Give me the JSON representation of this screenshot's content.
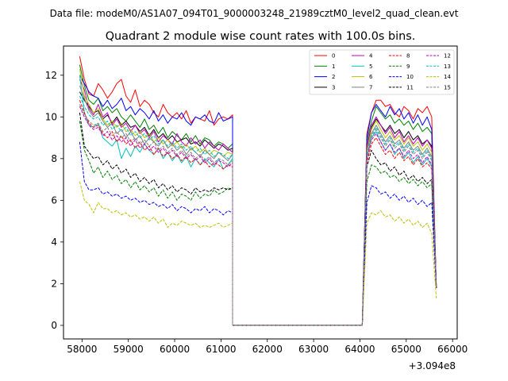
{
  "suptitle": "Data file: modeM0/AS1A07_094T01_9000003248_21989cztM0_level2_quad_clean.evt",
  "chart_data": {
    "type": "line",
    "title": "Quadrant 2 module wise count rates with 100.0s bins.",
    "xlabel": "",
    "ylabel": "",
    "x_offset_label": "+3.094e8",
    "xlim": [
      57600,
      66100
    ],
    "ylim": [
      -0.65,
      13.4
    ],
    "xticks": [
      58000,
      59000,
      60000,
      61000,
      62000,
      63000,
      64000,
      65000,
      66000
    ],
    "yticks": [
      0,
      2,
      4,
      6,
      8,
      10,
      12
    ],
    "grid": false,
    "legend": {
      "position": "top-right",
      "columns": 4
    },
    "x": {
      "segment1": {
        "start": 57950,
        "step": 100,
        "count": 34
      },
      "gap_from": 61250,
      "gap_to": 64050,
      "segment2": {
        "start": 64150,
        "step": 100,
        "count": 15
      }
    },
    "series": [
      {
        "name": "0",
        "color": "#ff0000",
        "style": "solid",
        "values": [
          12.9,
          11.8,
          11.1,
          11.0,
          11.6,
          11.3,
          10.9,
          11.2,
          11.6,
          11.8,
          11.0,
          10.7,
          11.3,
          10.5,
          10.8,
          10.6,
          10.2,
          10.0,
          10.6,
          10.2,
          10.0,
          10.2,
          9.9,
          10.3,
          9.7,
          10.0,
          9.9,
          9.8,
          10.3,
          9.6,
          9.9,
          10.0,
          9.9,
          10.1
        ],
        "values2": [
          9.2,
          10.2,
          10.8,
          10.8,
          10.5,
          10.6,
          10.2,
          10.0,
          10.5,
          10.3,
          9.9,
          10.4,
          10.2,
          10.5,
          10.0
        ]
      },
      {
        "name": "1",
        "color": "#008000",
        "style": "solid",
        "values": [
          12.5,
          11.5,
          10.8,
          10.6,
          10.9,
          10.3,
          10.5,
          10.2,
          10.4,
          10.0,
          9.8,
          10.1,
          9.8,
          9.5,
          9.9,
          9.4,
          9.6,
          9.2,
          9.5,
          9.0,
          9.3,
          9.1,
          8.9,
          9.2,
          8.8,
          9.1,
          8.7,
          9.0,
          8.9,
          8.6,
          8.8,
          8.7,
          8.5,
          8.7
        ],
        "values2": [
          8.8,
          9.8,
          10.5,
          10.2,
          9.9,
          10.1,
          9.7,
          9.9,
          9.6,
          9.8,
          9.4,
          9.7,
          9.3,
          9.5,
          9.2
        ]
      },
      {
        "name": "2",
        "color": "#0000ff",
        "style": "solid",
        "values": [
          12.0,
          11.6,
          11.2,
          11.0,
          10.9,
          10.5,
          10.8,
          10.4,
          10.6,
          10.9,
          10.3,
          10.5,
          10.1,
          10.4,
          10.2,
          9.9,
          10.3,
          9.8,
          10.1,
          9.7,
          10.0,
          9.9,
          10.2,
          9.8,
          9.6,
          10.0,
          9.9,
          10.1,
          9.8,
          9.7,
          10.2,
          9.8,
          9.9,
          10.0
        ],
        "values2": [
          9.0,
          10.2,
          10.6,
          10.3,
          10.0,
          10.5,
          10.1,
          10.4,
          9.9,
          10.2,
          9.7,
          10.1,
          9.6,
          10.0,
          9.4
        ]
      },
      {
        "name": "3",
        "color": "#000000",
        "style": "solid",
        "values": [
          11.2,
          10.8,
          10.5,
          10.2,
          10.3,
          9.9,
          10.1,
          9.7,
          10.0,
          9.6,
          9.8,
          9.5,
          9.6,
          9.3,
          9.5,
          9.1,
          9.4,
          9.0,
          9.2,
          8.9,
          9.1,
          8.8,
          8.9,
          9.0,
          8.7,
          8.8,
          8.6,
          8.9,
          8.7,
          8.5,
          8.7,
          8.6,
          8.4,
          8.5
        ],
        "values2": [
          8.5,
          9.5,
          9.9,
          9.6,
          9.3,
          9.6,
          9.2,
          9.4,
          9.0,
          9.3,
          8.9,
          9.1,
          8.7,
          8.9,
          8.6
        ]
      },
      {
        "name": "4",
        "color": "#bf00bf",
        "style": "solid",
        "values": [
          11.8,
          11.3,
          10.4,
          10.1,
          10.6,
          10.0,
          10.2,
          9.6,
          9.9,
          9.5,
          9.7,
          9.3,
          9.6,
          9.2,
          9.4,
          9.0,
          9.3,
          8.8,
          9.1,
          8.9,
          8.7,
          9.2,
          8.8,
          8.6,
          9.0,
          8.7,
          8.9,
          8.5,
          8.8,
          8.6,
          8.4,
          8.7,
          8.5,
          8.3
        ],
        "values2": [
          8.6,
          9.6,
          10.0,
          9.6,
          9.2,
          9.5,
          9.0,
          9.3,
          8.8,
          9.1,
          8.7,
          9.0,
          8.6,
          8.9,
          8.5
        ]
      },
      {
        "name": "5",
        "color": "#00bfbf",
        "style": "solid",
        "values": [
          12.0,
          10.2,
          9.6,
          9.5,
          9.7,
          9.0,
          8.8,
          8.6,
          8.9,
          8.0,
          8.5,
          8.1,
          8.6,
          8.3,
          8.7,
          8.4,
          8.2,
          8.5,
          8.0,
          8.3,
          7.9,
          8.2,
          7.8,
          8.1,
          7.6,
          8.0,
          7.7,
          8.0,
          7.8,
          7.6,
          8.0,
          7.5,
          7.7,
          8.0
        ],
        "values2": [
          8.0,
          9.0,
          9.3,
          8.8,
          8.4,
          8.7,
          8.2,
          8.5,
          8.0,
          8.3,
          7.8,
          8.1,
          7.7,
          8.0,
          7.6
        ]
      },
      {
        "name": "6",
        "color": "#bfbf00",
        "style": "solid",
        "values": [
          12.3,
          11.0,
          10.6,
          10.2,
          10.4,
          9.9,
          9.6,
          9.8,
          9.5,
          9.7,
          9.3,
          9.4,
          9.1,
          9.3,
          9.0,
          9.2,
          8.8,
          9.0,
          8.7,
          8.9,
          8.6,
          8.8,
          8.5,
          8.7,
          8.4,
          8.6,
          8.3,
          8.5,
          8.2,
          8.4,
          8.3,
          8.1,
          8.3,
          8.2
        ],
        "values2": [
          8.4,
          9.4,
          9.8,
          9.4,
          9.0,
          9.3,
          8.9,
          9.1,
          8.7,
          9.0,
          8.6,
          8.8,
          8.4,
          8.7,
          8.3
        ]
      },
      {
        "name": "7",
        "color": "#808080",
        "style": "solid",
        "values": [
          11.5,
          10.9,
          10.3,
          10.0,
          10.2,
          9.8,
          9.5,
          9.7,
          9.2,
          9.4,
          9.0,
          9.3,
          8.9,
          9.1,
          8.7,
          9.0,
          8.8,
          8.6,
          8.9,
          8.5,
          8.7,
          8.4,
          8.6,
          8.2,
          8.5,
          8.3,
          8.1,
          8.4,
          8.2,
          8.0,
          8.3,
          8.1,
          7.9,
          8.2
        ],
        "values2": [
          8.3,
          9.2,
          9.6,
          9.2,
          8.8,
          9.1,
          8.7,
          8.9,
          8.5,
          8.8,
          8.4,
          8.6,
          8.2,
          8.5,
          8.1
        ]
      },
      {
        "name": "8",
        "color": "#ff0000",
        "style": "dashed",
        "values": [
          10.8,
          10.2,
          9.7,
          9.5,
          9.6,
          9.2,
          9.0,
          9.3,
          8.8,
          9.1,
          8.7,
          8.9,
          8.5,
          8.8,
          8.4,
          8.6,
          8.2,
          8.5,
          8.1,
          8.3,
          8.0,
          8.2,
          7.9,
          8.1,
          7.8,
          8.0,
          7.7,
          7.9,
          7.6,
          7.8,
          7.7,
          7.5,
          7.7,
          7.6
        ],
        "values2": [
          7.8,
          8.7,
          9.0,
          8.6,
          8.2,
          8.4,
          8.0,
          8.3,
          7.9,
          8.1,
          7.7,
          8.0,
          7.6,
          7.8,
          7.5
        ]
      },
      {
        "name": "9",
        "color": "#008000",
        "style": "dashed",
        "values": [
          9.8,
          8.4,
          7.9,
          7.3,
          7.6,
          7.1,
          7.4,
          7.0,
          7.2,
          6.8,
          7.0,
          6.6,
          6.9,
          6.5,
          6.7,
          6.4,
          6.6,
          6.2,
          6.5,
          6.1,
          6.4,
          6.0,
          6.3,
          6.2,
          6.0,
          6.4,
          6.1,
          6.3,
          6.2,
          6.5,
          6.3,
          6.4,
          6.6,
          6.5
        ],
        "values2": [
          6.9,
          7.7,
          7.6,
          7.3,
          7.4,
          7.1,
          7.2,
          6.9,
          7.1,
          6.8,
          7.0,
          6.7,
          6.9,
          6.6,
          6.8
        ]
      },
      {
        "name": "10",
        "color": "#0000ff",
        "style": "dashed",
        "values": [
          8.8,
          6.9,
          6.5,
          6.5,
          6.6,
          6.3,
          6.4,
          6.2,
          6.3,
          6.1,
          6.2,
          6.0,
          6.1,
          5.9,
          6.0,
          5.8,
          5.9,
          5.7,
          5.8,
          5.6,
          5.8,
          5.5,
          5.7,
          5.6,
          5.4,
          5.6,
          5.5,
          5.7,
          5.4,
          5.6,
          5.5,
          5.3,
          5.5,
          5.4
        ],
        "values2": [
          5.9,
          6.7,
          6.6,
          6.3,
          6.4,
          6.1,
          6.3,
          6.0,
          6.2,
          5.9,
          6.1,
          5.8,
          6.0,
          5.7,
          5.9
        ]
      },
      {
        "name": "11",
        "color": "#000000",
        "style": "dashed",
        "values": [
          10.2,
          8.6,
          8.3,
          8.0,
          8.1,
          7.7,
          7.9,
          7.5,
          7.7,
          7.3,
          7.5,
          7.1,
          7.3,
          6.9,
          7.1,
          6.8,
          7.0,
          6.6,
          6.8,
          6.5,
          6.7,
          6.4,
          6.6,
          6.5,
          6.3,
          6.6,
          6.4,
          6.5,
          6.4,
          6.6,
          6.5,
          6.6,
          6.5,
          6.6
        ],
        "values2": [
          7.6,
          8.4,
          8.0,
          7.7,
          7.8,
          7.4,
          7.6,
          7.2,
          7.4,
          7.0,
          7.2,
          6.9,
          7.1,
          6.8,
          7.0
        ]
      },
      {
        "name": "12",
        "color": "#bf00bf",
        "style": "dashed",
        "values": [
          10.5,
          10.0,
          9.6,
          9.4,
          9.5,
          9.1,
          9.3,
          8.9,
          9.1,
          8.8,
          9.0,
          8.6,
          8.9,
          8.5,
          8.7,
          8.4,
          8.6,
          8.3,
          8.5,
          8.2,
          8.4,
          8.1,
          8.3,
          8.0,
          8.2,
          7.9,
          8.1,
          7.8,
          8.0,
          7.7,
          7.9,
          7.8,
          7.6,
          7.8
        ],
        "values2": [
          8.0,
          8.9,
          9.2,
          8.8,
          8.4,
          8.7,
          8.3,
          8.5,
          8.1,
          8.4,
          8.0,
          8.2,
          7.8,
          8.1,
          7.7
        ]
      },
      {
        "name": "13",
        "color": "#00bfbf",
        "style": "dashed",
        "values": [
          11.0,
          10.5,
          10.1,
          9.9,
          10.0,
          9.6,
          9.8,
          9.4,
          9.6,
          9.3,
          9.5,
          9.1,
          9.3,
          9.0,
          9.2,
          8.9,
          9.1,
          8.7,
          8.9,
          8.6,
          8.8,
          8.5,
          8.7,
          8.4,
          8.6,
          8.3,
          8.5,
          8.2,
          8.4,
          8.1,
          8.3,
          8.2,
          8.0,
          8.2
        ],
        "values2": [
          8.2,
          9.1,
          9.5,
          9.1,
          8.7,
          9.0,
          8.6,
          8.8,
          8.4,
          8.7,
          8.3,
          8.5,
          8.1,
          8.4,
          8.0
        ]
      },
      {
        "name": "14",
        "color": "#bfbf00",
        "style": "dashed",
        "values": [
          6.9,
          6.0,
          5.8,
          5.4,
          5.9,
          5.6,
          5.6,
          5.4,
          5.5,
          5.3,
          5.4,
          5.2,
          5.3,
          5.1,
          5.2,
          5.0,
          5.2,
          4.9,
          5.1,
          4.7,
          4.9,
          4.8,
          5.0,
          4.9,
          4.8,
          4.9,
          4.7,
          4.8,
          4.7,
          4.8,
          4.9,
          4.7,
          4.8,
          4.9
        ],
        "values2": [
          4.9,
          5.4,
          5.3,
          5.5,
          5.2,
          5.3,
          5.0,
          5.2,
          4.9,
          5.1,
          4.8,
          5.0,
          4.7,
          4.9,
          4.4
        ]
      },
      {
        "name": "15",
        "color": "#808080",
        "style": "dashed",
        "values": [
          10.6,
          10.1,
          9.8,
          9.6,
          9.7,
          9.3,
          9.5,
          9.1,
          9.3,
          9.0,
          9.2,
          8.8,
          9.0,
          8.7,
          8.9,
          8.6,
          8.8,
          8.4,
          8.6,
          8.3,
          8.5,
          8.2,
          8.4,
          8.1,
          8.3,
          8.0,
          8.2,
          7.9,
          8.1,
          7.8,
          8.0,
          7.9,
          7.7,
          7.9
        ],
        "values2": [
          8.1,
          9.0,
          9.4,
          9.0,
          8.6,
          8.9,
          8.5,
          8.7,
          8.3,
          8.6,
          8.2,
          8.4,
          8.0,
          8.3,
          7.9
        ]
      }
    ]
  }
}
